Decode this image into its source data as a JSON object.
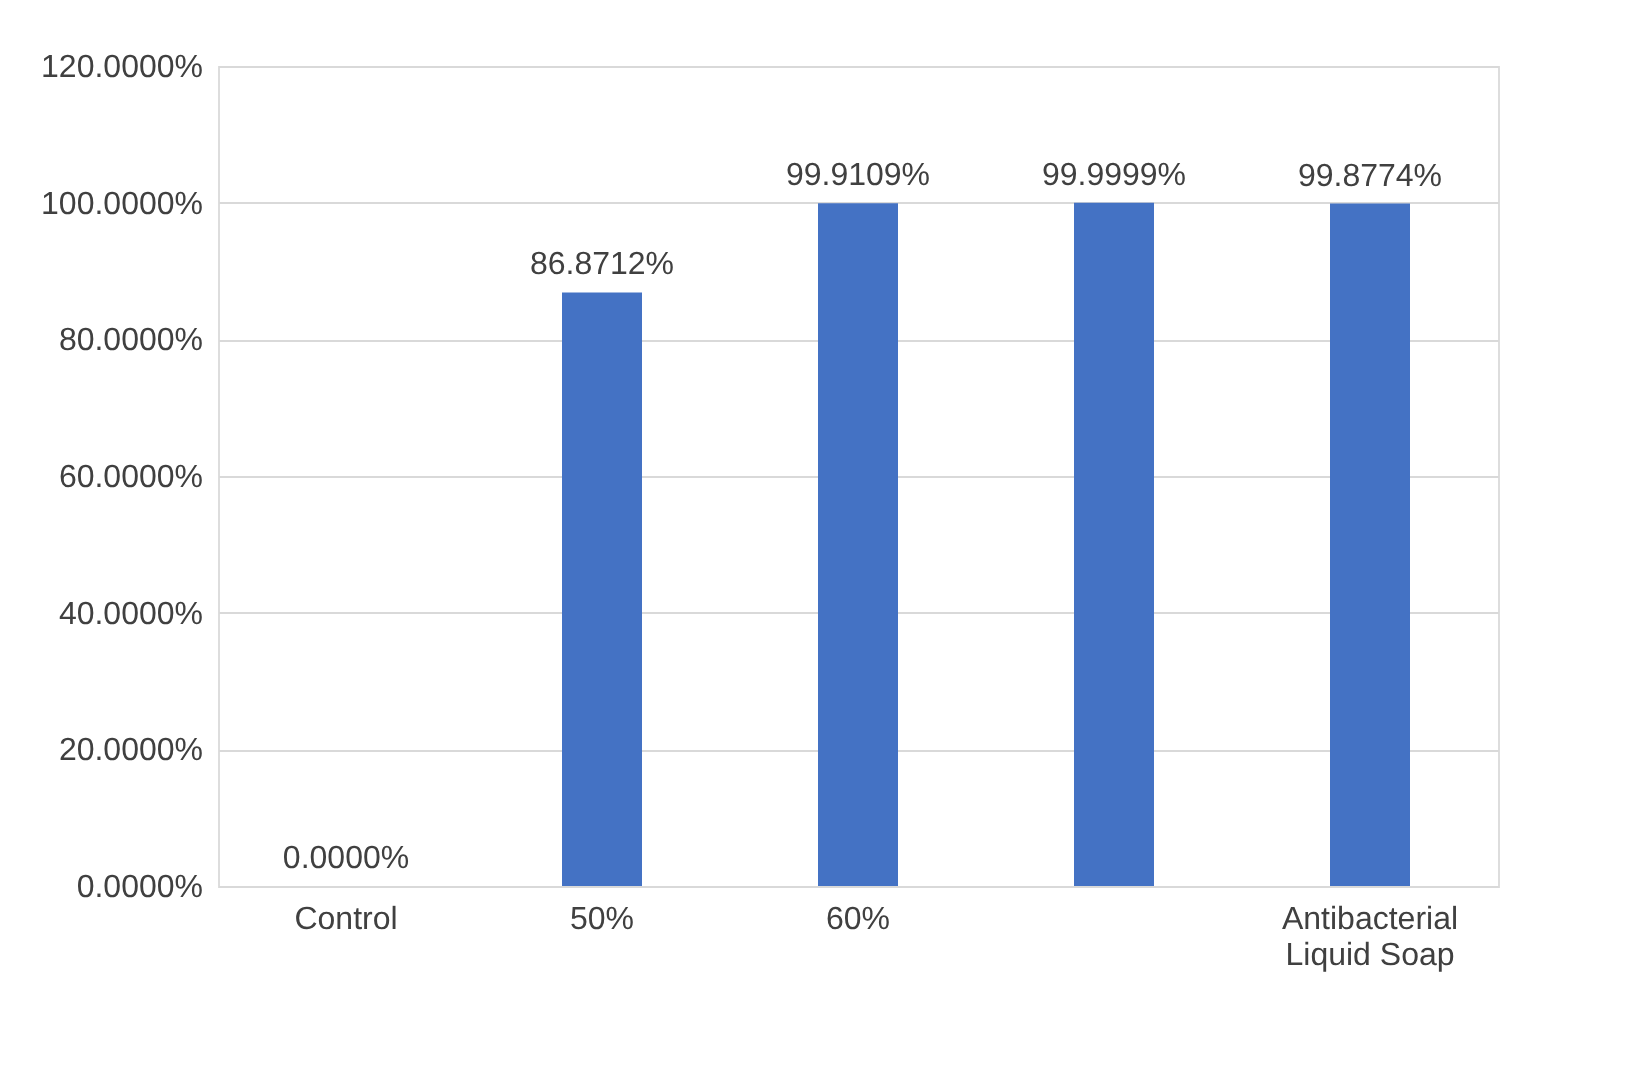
{
  "chart_data": {
    "type": "bar",
    "categories": [
      "Control",
      "50%",
      "60%",
      null,
      "Antibacterial Liquid Soap"
    ],
    "values": [
      0.0,
      86.8712,
      99.9109,
      99.9999,
      99.8774
    ],
    "value_labels": [
      "0.0000%",
      "86.8712%",
      "99.9109%",
      "99.9999%",
      "99.8774%"
    ],
    "color": "#4472c4",
    "ylim": [
      0,
      120
    ],
    "yticks": [
      {
        "value": 0,
        "label": "0.0000%"
      },
      {
        "value": 20,
        "label": "20.0000%"
      },
      {
        "value": 40,
        "label": "40.0000%"
      },
      {
        "value": 60,
        "label": "60.0000%"
      },
      {
        "value": 80,
        "label": "80.0000%"
      },
      {
        "value": 100,
        "label": "100.0000%"
      },
      {
        "value": 120,
        "label": "120.0000%"
      }
    ],
    "grid": "y"
  }
}
